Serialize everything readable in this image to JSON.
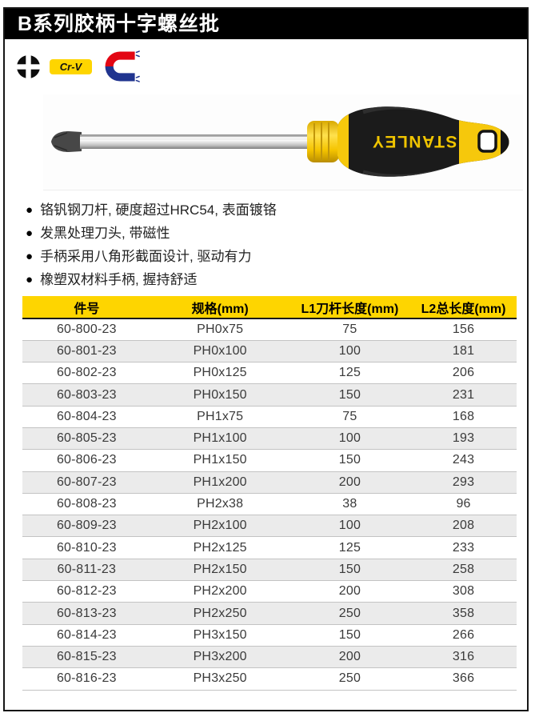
{
  "page": {
    "title": "B系列胶柄十字螺丝批"
  },
  "badges": {
    "phillips_icon": "phillips-drive-icon",
    "crv_label": "Cr-V",
    "magnet_icon": "magnetic-tip-icon"
  },
  "product": {
    "brand": "STANLEY"
  },
  "features": [
    "铬钒钢刀杆, 硬度超过HRC54, 表面镀铬",
    "发黑处理刀头, 带磁性",
    "手柄采用八角形截面设计, 驱动有力",
    "橡塑双材料手柄, 握持舒适"
  ],
  "table": {
    "columns": [
      "件号",
      "规格(mm)",
      "L1刀杆长度(mm)",
      "L2总长度(mm)"
    ],
    "rows": [
      [
        "60-800-23",
        "PH0x75",
        "75",
        "156"
      ],
      [
        "60-801-23",
        "PH0x100",
        "100",
        "181"
      ],
      [
        "60-802-23",
        "PH0x125",
        "125",
        "206"
      ],
      [
        "60-803-23",
        "PH0x150",
        "150",
        "231"
      ],
      [
        "60-804-23",
        "PH1x75",
        "75",
        "168"
      ],
      [
        "60-805-23",
        "PH1x100",
        "100",
        "193"
      ],
      [
        "60-806-23",
        "PH1x150",
        "150",
        "243"
      ],
      [
        "60-807-23",
        "PH1x200",
        "200",
        "293"
      ],
      [
        "60-808-23",
        "PH2x38",
        "38",
        "96"
      ],
      [
        "60-809-23",
        "PH2x100",
        "100",
        "208"
      ],
      [
        "60-810-23",
        "PH2x125",
        "125",
        "233"
      ],
      [
        "60-811-23",
        "PH2x150",
        "150",
        "258"
      ],
      [
        "60-812-23",
        "PH2x200",
        "200",
        "308"
      ],
      [
        "60-813-23",
        "PH2x250",
        "250",
        "358"
      ],
      [
        "60-814-23",
        "PH3x150",
        "150",
        "266"
      ],
      [
        "60-815-23",
        "PH3x200",
        "200",
        "316"
      ],
      [
        "60-816-23",
        "PH3x250",
        "250",
        "366"
      ]
    ]
  },
  "colors": {
    "accent_yellow": "#FED500",
    "magnet_red": "#E30613",
    "magnet_blue": "#20348F",
    "row_alt": "#EBEBEB",
    "title_bar": "#000000"
  }
}
